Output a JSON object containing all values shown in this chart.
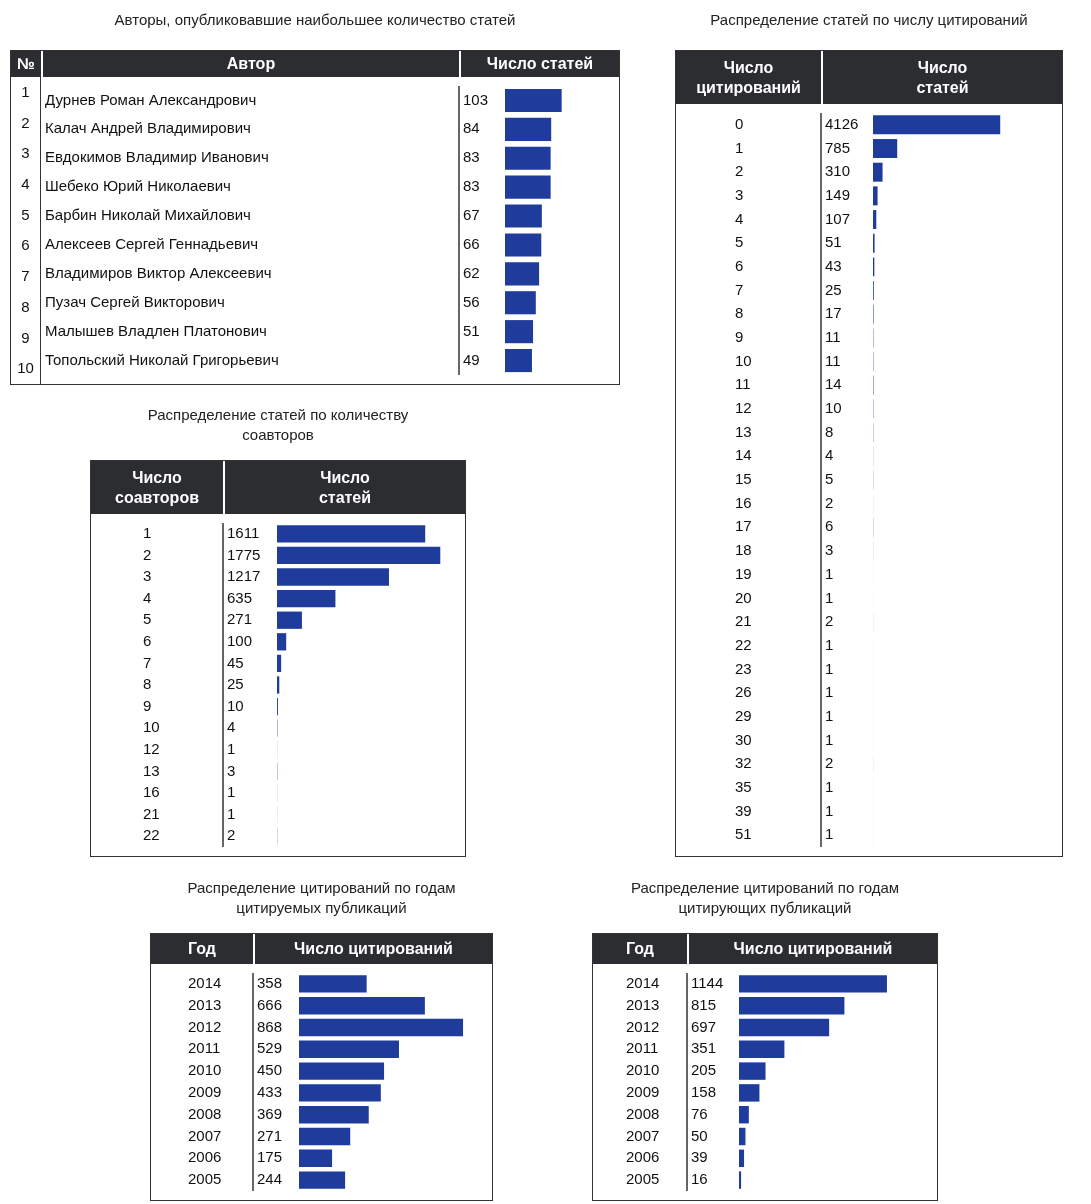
{
  "chart_data": [
    {
      "type": "bar",
      "orientation": "horizontal",
      "title": "Авторы, опубликовавшие наибольшее количество статей",
      "ylabel": "Автор",
      "xlabel": "Число статей",
      "annotations": [
        "№",
        "1",
        "2",
        "3",
        "4",
        "5",
        "6",
        "7",
        "8",
        "9",
        "10"
      ],
      "categories": [
        "Дурнев Роман Александрович",
        "Калач Андрей Владимирович",
        "Евдокимов Владимир Иванович",
        "Шебеко Юрий Николаевич",
        "Барбин Николай Михайлович",
        "Алексеев Сергей Геннадьевич",
        "Владимиров Виктор Алексеевич",
        "Пузач Сергей Викторович",
        "Малышев Владлен Платонович",
        "Топольский Николай Григорьевич"
      ],
      "values": [
        103,
        84,
        83,
        83,
        67,
        66,
        62,
        56,
        51,
        49
      ],
      "color": "#1f3c9c",
      "data_labels": true
    },
    {
      "type": "bar",
      "orientation": "horizontal",
      "title": "Распределение статей по числу цитирований",
      "ylabel": "Число цитирований",
      "xlabel": "Число статей",
      "categories": [
        "0",
        "1",
        "2",
        "3",
        "4",
        "5",
        "6",
        "7",
        "8",
        "9",
        "10",
        "11",
        "12",
        "13",
        "14",
        "15",
        "16",
        "17",
        "18",
        "19",
        "20",
        "21",
        "22",
        "23",
        "26",
        "29",
        "30",
        "32",
        "35",
        "39",
        "51"
      ],
      "values": [
        4126,
        785,
        310,
        149,
        107,
        51,
        43,
        25,
        17,
        11,
        11,
        14,
        10,
        8,
        4,
        5,
        2,
        6,
        3,
        1,
        1,
        2,
        1,
        1,
        1,
        1,
        1,
        2,
        1,
        1,
        1
      ],
      "color": "#1f3c9c",
      "data_labels": true
    },
    {
      "type": "bar",
      "orientation": "horizontal",
      "title": "Распределение статей по количеству соавторов",
      "ylabel": "Число соавторов",
      "xlabel": "Число статей",
      "categories": [
        "1",
        "2",
        "3",
        "4",
        "5",
        "6",
        "7",
        "8",
        "9",
        "10",
        "12",
        "13",
        "16",
        "21",
        "22"
      ],
      "values": [
        1611,
        1775,
        1217,
        635,
        271,
        100,
        45,
        25,
        10,
        4,
        1,
        3,
        1,
        1,
        2
      ],
      "color": "#1f3c9c",
      "data_labels": true
    },
    {
      "type": "bar",
      "orientation": "horizontal",
      "title": "Распределение цитирований по годам цитируемых публикаций",
      "ylabel": "Год",
      "xlabel": "Число цитирований",
      "categories": [
        "2014",
        "2013",
        "2012",
        "2011",
        "2010",
        "2009",
        "2008",
        "2007",
        "2006",
        "2005"
      ],
      "values": [
        358,
        666,
        868,
        529,
        450,
        433,
        369,
        271,
        175,
        244
      ],
      "color": "#1f3c9c",
      "data_labels": true
    },
    {
      "type": "bar",
      "orientation": "horizontal",
      "title": "Распределение цитирований по годам цитирующих публикаций",
      "ylabel": "Год",
      "xlabel": "Число цитирований",
      "categories": [
        "2014",
        "2013",
        "2012",
        "2011",
        "2010",
        "2009",
        "2008",
        "2007",
        "2006",
        "2005"
      ],
      "values": [
        1144,
        815,
        697,
        351,
        205,
        158,
        76,
        50,
        39,
        16
      ],
      "color": "#1f3c9c",
      "data_labels": true
    }
  ]
}
